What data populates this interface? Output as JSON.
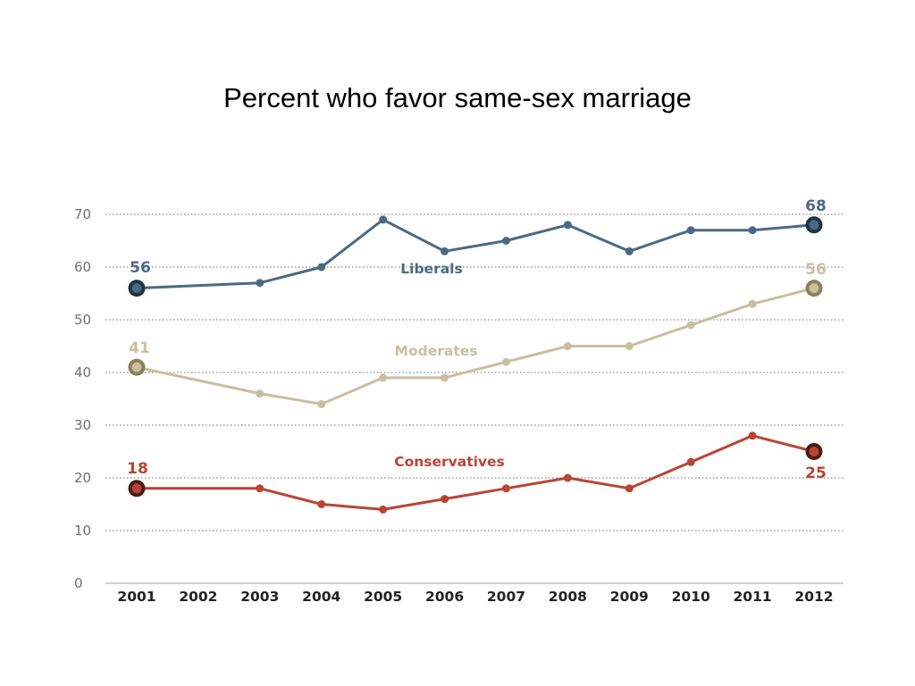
{
  "title": "Percent who favor same-sex marriage",
  "chart_data": {
    "type": "line",
    "title": "Percent who favor same-sex marriage",
    "xlabel": "",
    "ylabel": "",
    "x": [
      "2001",
      "2002",
      "2003",
      "2004",
      "2005",
      "2006",
      "2007",
      "2008",
      "2009",
      "2010",
      "2011",
      "2012"
    ],
    "y_ticks": [
      0,
      10,
      20,
      30,
      40,
      50,
      60,
      70
    ],
    "ylim": [
      0,
      70
    ],
    "grid": true,
    "legend": "inline labels",
    "series": [
      {
        "name": "Liberals",
        "color": "#4a6a84",
        "end_marker_color": "#1f3346",
        "values": [
          56,
          null,
          57,
          60,
          69,
          63,
          65,
          68,
          63,
          67,
          67,
          68
        ],
        "start_label": "56",
        "end_label": "68"
      },
      {
        "name": "Moderates",
        "color": "#c9bf9f",
        "end_marker_color": "#8b8058",
        "values": [
          41,
          null,
          36,
          34,
          39,
          39,
          42,
          45,
          45,
          49,
          53,
          56
        ],
        "start_label": "41",
        "end_label": "56"
      },
      {
        "name": "Conservatives",
        "color": "#b94434",
        "end_marker_color": "#4a1a14",
        "values": [
          18,
          null,
          18,
          15,
          14,
          16,
          18,
          20,
          18,
          23,
          28,
          25
        ],
        "start_label": "18",
        "end_label": "25"
      }
    ]
  }
}
